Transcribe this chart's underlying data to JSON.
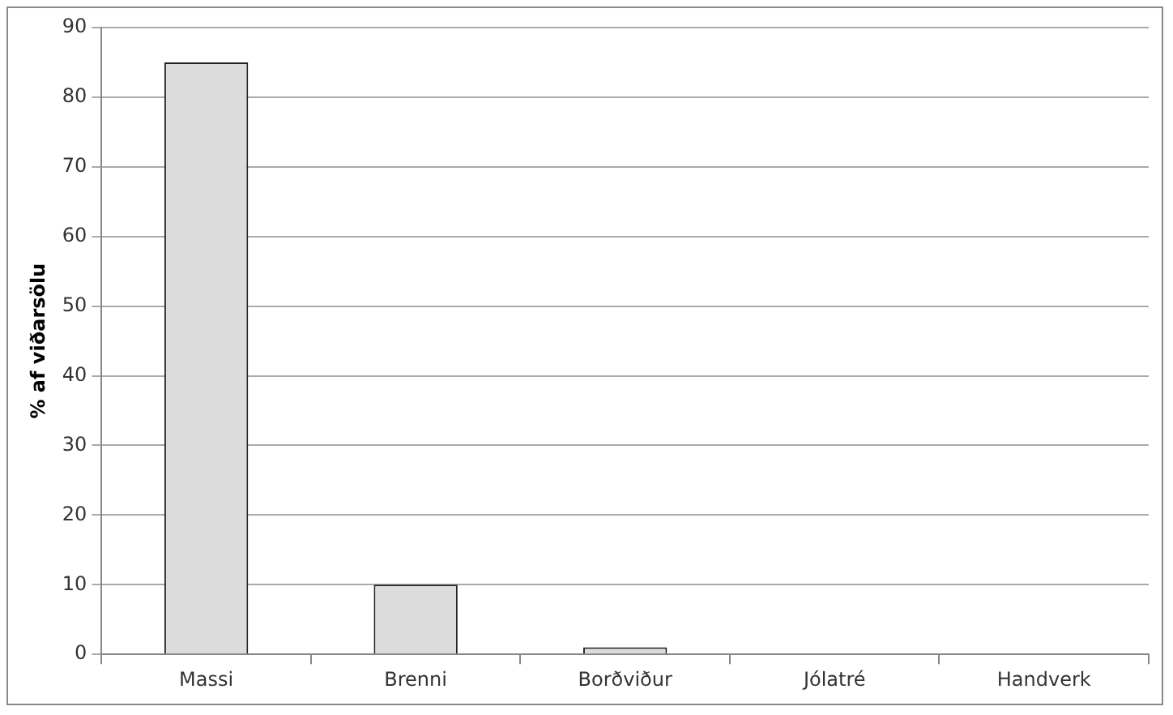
{
  "chart_data": {
    "type": "bar",
    "ylabel": "% af viðarsölu",
    "categories": [
      "Massi",
      "Brenni",
      "Borðviður",
      "Jólatré",
      "Handverk"
    ],
    "values": [
      85,
      10,
      1,
      0.1,
      0.1
    ],
    "color": "#dcdcdc",
    "ylim": [
      0,
      90
    ],
    "yticks": [
      0,
      10,
      20,
      30,
      40,
      50,
      60,
      70,
      80,
      90
    ],
    "grid": "y"
  }
}
